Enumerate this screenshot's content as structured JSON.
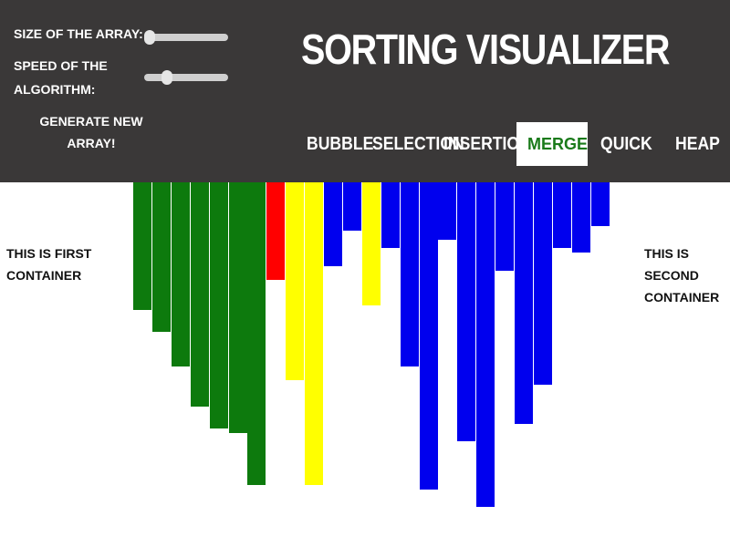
{
  "header": {
    "title": "SORTING VISUALIZER",
    "size_label": "SIZE OF THE ARRAY:",
    "speed_label": "SPEED OF THE ALGORITHM:",
    "generate_label": "GENERATE NEW ARRAY!",
    "size_value": 0,
    "speed_value": 0.2
  },
  "algorithms": [
    {
      "label": "BUBBLE",
      "active": false
    },
    {
      "label": "SELECTION",
      "active": false
    },
    {
      "label": "INSERTION",
      "active": false
    },
    {
      "label": "MERGE",
      "active": true
    },
    {
      "label": "QUICK",
      "active": false
    },
    {
      "label": "HEAP",
      "active": false
    }
  ],
  "containers": {
    "first_label": "THIS IS FIRST CONTAINER",
    "second_label": "THIS IS SECOND CONTAINER"
  },
  "colors": {
    "header_bg": "#3a3838",
    "sorted": "#0d7a0d",
    "compare": "#ff0000",
    "pivot": "#ffff00",
    "unsorted": "#0000ee",
    "active_text": "#1a7a1a"
  },
  "bars": [
    {
      "value": 140,
      "state": "sorted"
    },
    {
      "value": 164,
      "state": "sorted"
    },
    {
      "value": 202,
      "state": "sorted"
    },
    {
      "value": 246,
      "state": "sorted"
    },
    {
      "value": 270,
      "state": "sorted"
    },
    {
      "value": 275,
      "state": "sorted"
    },
    {
      "value": 332,
      "state": "sorted"
    },
    {
      "value": 107,
      "state": "compare"
    },
    {
      "value": 217,
      "state": "pivot"
    },
    {
      "value": 332,
      "state": "pivot"
    },
    {
      "value": 92,
      "state": "unsorted"
    },
    {
      "value": 53,
      "state": "unsorted"
    },
    {
      "value": 135,
      "state": "pivot"
    },
    {
      "value": 72,
      "state": "unsorted"
    },
    {
      "value": 202,
      "state": "unsorted"
    },
    {
      "value": 337,
      "state": "unsorted"
    },
    {
      "value": 63,
      "state": "unsorted"
    },
    {
      "value": 284,
      "state": "unsorted"
    },
    {
      "value": 356,
      "state": "unsorted"
    },
    {
      "value": 97,
      "state": "unsorted"
    },
    {
      "value": 265,
      "state": "unsorted"
    },
    {
      "value": 222,
      "state": "unsorted"
    },
    {
      "value": 72,
      "state": "unsorted"
    },
    {
      "value": 77,
      "state": "unsorted"
    },
    {
      "value": 48,
      "state": "unsorted"
    }
  ]
}
